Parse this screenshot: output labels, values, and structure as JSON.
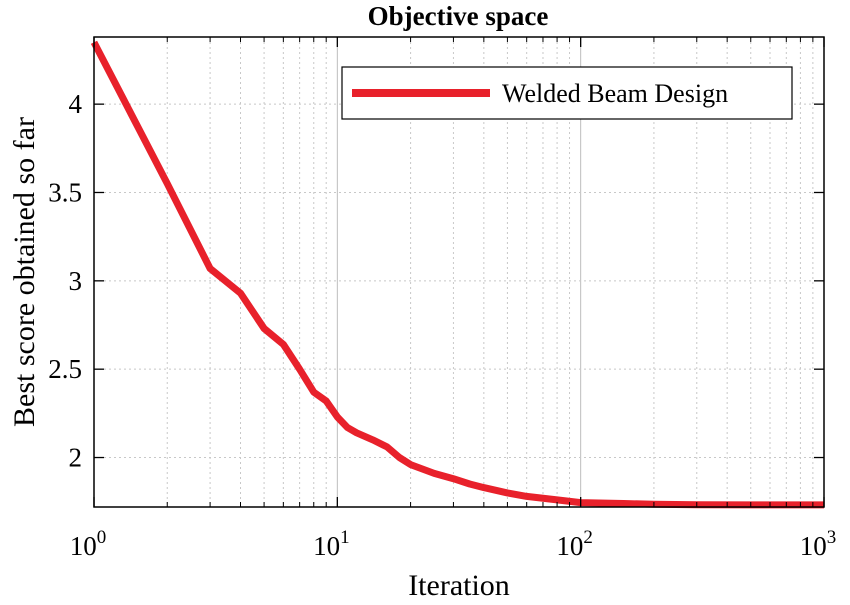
{
  "chart_data": {
    "type": "line",
    "title": "Objective space",
    "xlabel": "Iteration",
    "ylabel": "Best score obtained so far",
    "xscale": "log",
    "xlim": [
      1,
      1000
    ],
    "ylim": [
      1.72,
      4.38
    ],
    "grid": true,
    "legend_position": "top-right",
    "xticks": [
      {
        "value": 1,
        "base": "10",
        "exp": "0"
      },
      {
        "value": 10,
        "base": "10",
        "exp": "1"
      },
      {
        "value": 100,
        "base": "10",
        "exp": "2"
      },
      {
        "value": 1000,
        "base": "10",
        "exp": "3"
      }
    ],
    "yticks": [
      {
        "value": 2,
        "label": "2"
      },
      {
        "value": 2.5,
        "label": "2.5"
      },
      {
        "value": 3,
        "label": "3"
      },
      {
        "value": 3.5,
        "label": "3.5"
      },
      {
        "value": 4,
        "label": "4"
      }
    ],
    "series": [
      {
        "name": "Welded Beam Design",
        "color": "#e8212b",
        "x": [
          1,
          2,
          3,
          4,
          5,
          6,
          7,
          8,
          9,
          10,
          11,
          12,
          14,
          16,
          18,
          20,
          25,
          30,
          35,
          40,
          50,
          60,
          80,
          100,
          150,
          200,
          300,
          500,
          1000
        ],
        "y": [
          4.35,
          3.55,
          3.07,
          2.93,
          2.73,
          2.64,
          2.5,
          2.37,
          2.32,
          2.23,
          2.17,
          2.14,
          2.1,
          2.06,
          2.0,
          1.96,
          1.91,
          1.88,
          1.85,
          1.83,
          1.8,
          1.78,
          1.76,
          1.745,
          1.74,
          1.735,
          1.733,
          1.732,
          1.732
        ]
      }
    ]
  }
}
